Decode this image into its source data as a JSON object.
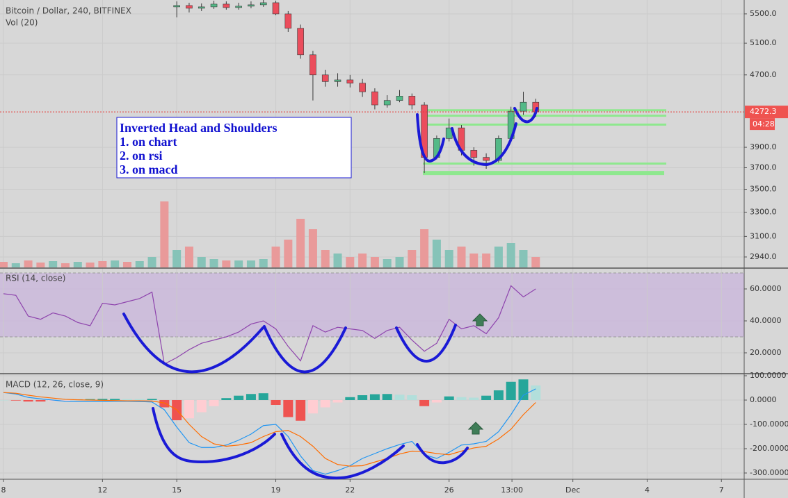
{
  "chart_data": [
    {
      "type": "candlestick",
      "title": "Bitcoin / Dollar, 240, BITFINEX",
      "log": true,
      "grid": true,
      "up_color": "#53b987",
      "down_color": "#eb4d5c",
      "x": [
        15,
        15.5,
        16,
        16.5,
        17,
        17.5,
        18,
        18.5,
        19,
        19.5,
        20,
        20.5,
        21,
        21.5,
        22,
        22.5,
        23,
        23.5,
        24,
        24.5,
        25,
        25.5,
        26,
        26.5,
        27,
        27.5,
        28,
        28.5,
        29,
        29.5
      ],
      "open": [
        5600,
        5620,
        5580,
        5600,
        5640,
        5590,
        5610,
        5630,
        5660,
        5500,
        5300,
        4950,
        4700,
        4620,
        4640,
        4600,
        4500,
        4350,
        4400,
        4450,
        4350,
        3800,
        3990,
        4100,
        3870,
        3800,
        3770,
        3990,
        4280,
        4380
      ],
      "high": [
        5680,
        5660,
        5650,
        5690,
        5680,
        5660,
        5680,
        5700,
        5690,
        5540,
        5350,
        5000,
        4760,
        4720,
        4700,
        4650,
        4540,
        4460,
        4520,
        4480,
        4380,
        4020,
        4200,
        4130,
        3900,
        3840,
        4020,
        4330,
        4500,
        4420
      ],
      "low": [
        5450,
        5520,
        5540,
        5570,
        5560,
        5560,
        5580,
        5600,
        5480,
        5250,
        4900,
        4400,
        4560,
        4560,
        4550,
        4440,
        4300,
        4320,
        4380,
        4300,
        3650,
        3780,
        3960,
        3820,
        3720,
        3690,
        3750,
        3960,
        4240,
        4220
      ],
      "close": [
        5620,
        5580,
        5600,
        5640,
        5590,
        5610,
        5630,
        5660,
        5500,
        5300,
        4950,
        4700,
        4620,
        4640,
        4600,
        4500,
        4350,
        4400,
        4450,
        4350,
        3800,
        3990,
        4100,
        3870,
        3800,
        3770,
        3990,
        4280,
        4380,
        4272.3
      ],
      "xlim": [
        7.86,
        37.92
      ],
      "ylim": [
        2862,
        5700
      ],
      "yticks": [
        {
          "value": 5500,
          "label": "5500.0"
        },
        {
          "value": 5100,
          "label": "5100.0"
        },
        {
          "value": 4700,
          "label": "4700.0"
        },
        {
          "value": 3900,
          "label": "3900.0"
        },
        {
          "value": 3700,
          "label": "3700.0"
        },
        {
          "value": 3500,
          "label": "3500.0"
        },
        {
          "value": 3300,
          "label": "3300.0"
        },
        {
          "value": 3100,
          "label": "3100.0"
        },
        {
          "value": 2940,
          "label": "2940.0"
        }
      ],
      "countdown": "04:28",
      "levels": [
        4290,
        4230,
        4135,
        3740,
        3650
      ],
      "level_color": "#8ee88e",
      "annotations": [
        "Inverted Head and Shoulders",
        "1. on chart",
        "2. on rsi",
        "3. on macd"
      ]
    },
    {
      "type": "bar",
      "title": "Vol (20)",
      "x": [
        8,
        8.5,
        9,
        9.5,
        10,
        10.5,
        11,
        11.5,
        12,
        12.5,
        13,
        13.5,
        14,
        14.5,
        15,
        15.5,
        16,
        16.5,
        17,
        17.5,
        18,
        18.5,
        19,
        19.5,
        20,
        20.5,
        21,
        21.5,
        22,
        22.5,
        23,
        23.5,
        24,
        24.5,
        25,
        25.5,
        26,
        26.5,
        27,
        27.5,
        28,
        28.5,
        29,
        29.5
      ],
      "values": [
        8,
        6,
        10,
        7,
        9,
        6,
        8,
        7,
        9,
        10,
        8,
        9,
        15,
        95,
        25,
        30,
        15,
        12,
        10,
        10,
        10,
        12,
        30,
        40,
        70,
        55,
        25,
        20,
        15,
        20,
        15,
        12,
        15,
        25,
        55,
        40,
        25,
        30,
        20,
        20,
        30,
        35,
        25,
        15
      ],
      "colors": [
        "#e99a9a",
        "#86c3b8",
        "#e99a9a",
        "#e99a9a",
        "#86c3b8",
        "#e99a9a",
        "#86c3b8",
        "#e99a9a",
        "#e99a9a",
        "#86c3b8",
        "#e99a9a",
        "#86c3b8",
        "#86c3b8",
        "#e99a9a",
        "#86c3b8",
        "#e99a9a",
        "#86c3b8",
        "#86c3b8",
        "#e99a9a",
        "#86c3b8",
        "#86c3b8",
        "#86c3b8",
        "#e99a9a",
        "#e99a9a",
        "#e99a9a",
        "#e99a9a",
        "#e99a9a",
        "#86c3b8",
        "#e99a9a",
        "#e99a9a",
        "#e99a9a",
        "#86c3b8",
        "#86c3b8",
        "#e99a9a",
        "#e99a9a",
        "#86c3b8",
        "#86c3b8",
        "#e99a9a",
        "#e99a9a",
        "#e99a9a",
        "#86c3b8",
        "#86c3b8",
        "#86c3b8",
        "#e99a9a"
      ],
      "xlim": [
        7.86,
        37.92
      ],
      "ylim": [
        0,
        100
      ]
    },
    {
      "type": "line",
      "title": "RSI (14, close)",
      "color": "#8e44ad",
      "grid": true,
      "x": [
        8,
        8.5,
        9,
        9.5,
        10,
        10.5,
        11,
        11.5,
        12,
        12.5,
        13,
        13.5,
        14,
        14.5,
        15,
        15.5,
        16,
        16.5,
        17,
        17.5,
        18,
        18.5,
        19,
        19.5,
        20,
        20.5,
        21,
        21.5,
        22,
        22.5,
        23,
        23.5,
        24,
        24.5,
        25,
        25.5,
        26,
        26.5,
        27,
        27.5,
        28,
        28.5,
        29,
        29.5
      ],
      "values": [
        57,
        56,
        43,
        41,
        45,
        43,
        39,
        37,
        51,
        50,
        52,
        54,
        58,
        13,
        17,
        22,
        26,
        28,
        30,
        33,
        38,
        40,
        35,
        24,
        15,
        37,
        33,
        36,
        35,
        34,
        29,
        34,
        36,
        28,
        21,
        26,
        41,
        35,
        37,
        32,
        42,
        62,
        55,
        60
      ],
      "band": [
        30,
        70
      ],
      "band_color": "#c9b6dc",
      "xlim": [
        7.86,
        37.92
      ],
      "ylim": [
        7.4,
        72.6
      ],
      "yticks": [
        {
          "value": 60,
          "label": "60.0000"
        },
        {
          "value": 40,
          "label": "40.0000"
        },
        {
          "value": 20,
          "label": "20.0000"
        }
      ]
    },
    {
      "type": "combo",
      "title": "MACD (12, 26, close, 9)",
      "grid": true,
      "x": [
        8,
        8.5,
        9,
        9.5,
        10,
        10.5,
        11,
        11.5,
        12,
        12.5,
        13,
        13.5,
        14,
        14.5,
        15,
        15.5,
        16,
        16.5,
        17,
        17.5,
        18,
        18.5,
        19,
        19.5,
        20,
        20.5,
        21,
        21.5,
        22,
        22.5,
        23,
        23.5,
        24,
        24.5,
        25,
        25.5,
        26,
        26.5,
        27,
        27.5,
        28,
        28.5,
        29,
        29.5
      ],
      "series": [
        {
          "type": "bar",
          "values": [
            0,
            -2,
            -6,
            -6,
            -4,
            -2,
            3,
            4,
            5,
            5,
            4,
            4,
            5,
            -30,
            -83,
            -75,
            -50,
            -25,
            8,
            18,
            25,
            28,
            -20,
            -70,
            -85,
            -55,
            -30,
            -10,
            12,
            20,
            24,
            25,
            22,
            20,
            -25,
            -10,
            15,
            12,
            10,
            18,
            40,
            75,
            85,
            60
          ],
          "colors": [
            "#b2dfdb",
            "#ef5350",
            "#ef5350",
            "#ef5350",
            "#ffcdd2",
            "#ffcdd2",
            "#26a69a",
            "#26a69a",
            "#26a69a",
            "#26a69a",
            "#b2dfdb",
            "#b2dfdb",
            "#26a69a",
            "#ef5350",
            "#ef5350",
            "#ffcdd2",
            "#ffcdd2",
            "#ffcdd2",
            "#26a69a",
            "#26a69a",
            "#26a69a",
            "#26a69a",
            "#ef5350",
            "#ef5350",
            "#ef5350",
            "#ffcdd2",
            "#ffcdd2",
            "#ffcdd2",
            "#26a69a",
            "#26a69a",
            "#26a69a",
            "#26a69a",
            "#b2dfdb",
            "#b2dfdb",
            "#ef5350",
            "#ffcdd2",
            "#26a69a",
            "#b2dfdb",
            "#b2dfdb",
            "#26a69a",
            "#26a69a",
            "#26a69a",
            "#26a69a",
            "#b2dfdb"
          ]
        },
        {
          "type": "line",
          "color": "#2196f3",
          "values": [
            31,
            25,
            11,
            5,
            0,
            -5,
            -6,
            -6,
            -6,
            -5,
            -5,
            -6,
            -8,
            -40,
            -111,
            -175,
            -195,
            -195,
            -185,
            -165,
            -140,
            -105,
            -100,
            -150,
            -230,
            -290,
            -305,
            -290,
            -270,
            -240,
            -220,
            -200,
            -183,
            -170,
            -225,
            -240,
            -215,
            -185,
            -180,
            -170,
            -130,
            -60,
            20,
            46
          ]
        },
        {
          "type": "line",
          "color": "#ff6d00",
          "values": [
            31,
            28,
            20,
            13,
            8,
            3,
            1,
            0,
            -1,
            -2,
            -3,
            -3,
            -4,
            -12,
            -40,
            -100,
            -150,
            -180,
            -190,
            -185,
            -175,
            -150,
            -130,
            -125,
            -150,
            -190,
            -240,
            -265,
            -272,
            -270,
            -255,
            -240,
            -222,
            -210,
            -212,
            -220,
            -225,
            -210,
            -197,
            -190,
            -160,
            -120,
            -60,
            -10
          ]
        }
      ],
      "xlim": [
        7.86,
        37.92
      ],
      "ylim": [
        -325.7,
        105.7
      ],
      "yticks": [
        {
          "value": 100,
          "label": "100.0000"
        },
        {
          "value": 0,
          "label": "0.0000"
        },
        {
          "value": -100,
          "label": "-100.0000"
        },
        {
          "value": -200,
          "label": "-200.0000"
        },
        {
          "value": -300,
          "label": "-300.0000"
        }
      ],
      "xticks": [
        8,
        12,
        15,
        19,
        22,
        26,
        {
          "value": 28.54,
          "label": "13:00"
        },
        {
          "value": 31,
          "label": "Dec"
        },
        {
          "value": 34,
          "label": "4"
        },
        {
          "value": 37,
          "label": "7"
        }
      ]
    }
  ]
}
